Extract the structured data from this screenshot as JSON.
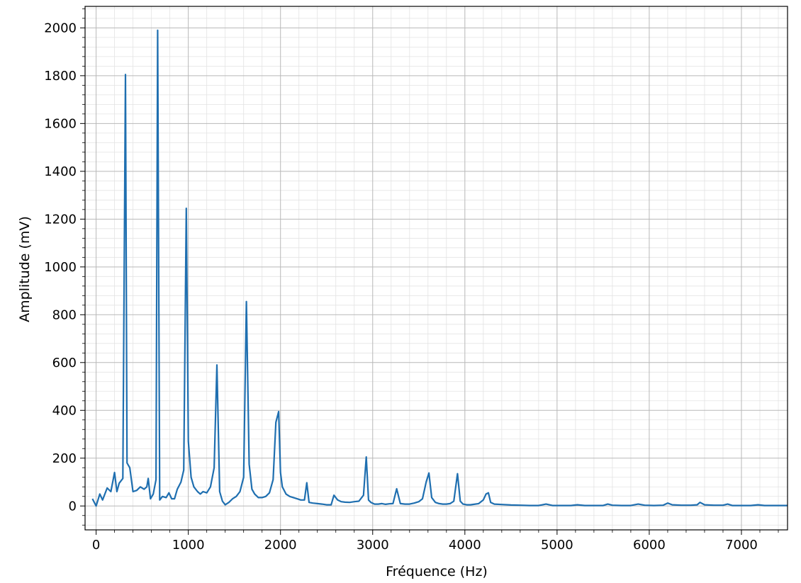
{
  "chart_data": {
    "type": "line",
    "title": "",
    "xlabel": "Fréquence (Hz)",
    "ylabel": "Amplitude (mV)",
    "xlim": [
      -120,
      7500
    ],
    "ylim": [
      -100,
      2090
    ],
    "xticks": [
      0,
      1000,
      2000,
      3000,
      4000,
      5000,
      6000,
      7000
    ],
    "yticks": [
      0,
      200,
      400,
      600,
      800,
      1000,
      1200,
      1400,
      1600,
      1800,
      2000
    ],
    "grid": true,
    "minor_grid": true,
    "legend": "none",
    "series": [
      {
        "color": "#1f6fb0",
        "x": [
          -40,
          0,
          40,
          70,
          120,
          160,
          200,
          225,
          250,
          290,
          318,
          335,
          365,
          400,
          440,
          480,
          520,
          550,
          565,
          590,
          620,
          650,
          667,
          690,
          720,
          760,
          790,
          820,
          850,
          880,
          920,
          950,
          978,
          1000,
          1030,
          1060,
          1100,
          1130,
          1160,
          1200,
          1240,
          1280,
          1310,
          1340,
          1370,
          1400,
          1440,
          1480,
          1520,
          1560,
          1600,
          1630,
          1660,
          1690,
          1720,
          1760,
          1800,
          1840,
          1880,
          1920,
          1950,
          1980,
          2000,
          2020,
          2060,
          2100,
          2140,
          2180,
          2220,
          2260,
          2285,
          2310,
          2350,
          2400,
          2450,
          2500,
          2550,
          2580,
          2620,
          2660,
          2700,
          2750,
          2800,
          2850,
          2900,
          2930,
          2955,
          2980,
          3020,
          3060,
          3100,
          3140,
          3180,
          3220,
          3260,
          3300,
          3350,
          3400,
          3450,
          3500,
          3540,
          3580,
          3610,
          3640,
          3680,
          3720,
          3760,
          3800,
          3840,
          3880,
          3920,
          3950,
          3980,
          4020,
          4060,
          4100,
          4150,
          4200,
          4230,
          4255,
          4280,
          4320,
          4400,
          4500,
          4600,
          4700,
          4800,
          4880,
          4950,
          5050,
          5150,
          5220,
          5300,
          5400,
          5500,
          5550,
          5600,
          5700,
          5800,
          5880,
          5950,
          6050,
          6150,
          6200,
          6250,
          6350,
          6450,
          6520,
          6550,
          6600,
          6700,
          6800,
          6850,
          6900,
          7000,
          7100,
          7180,
          7250,
          7350,
          7500
        ],
        "y": [
          30,
          0,
          50,
          25,
          75,
          60,
          140,
          60,
          95,
          115,
          1805,
          180,
          160,
          60,
          65,
          80,
          70,
          80,
          115,
          30,
          50,
          110,
          1990,
          25,
          40,
          35,
          55,
          30,
          30,
          70,
          100,
          150,
          1245,
          270,
          120,
          80,
          60,
          50,
          60,
          55,
          80,
          160,
          590,
          60,
          20,
          5,
          15,
          30,
          40,
          60,
          120,
          855,
          175,
          70,
          50,
          35,
          35,
          40,
          55,
          110,
          350,
          395,
          140,
          80,
          50,
          40,
          35,
          30,
          25,
          25,
          97,
          15,
          12,
          10,
          8,
          5,
          5,
          45,
          25,
          18,
          16,
          15,
          18,
          20,
          45,
          205,
          25,
          15,
          8,
          8,
          10,
          7,
          9,
          10,
          72,
          10,
          8,
          8,
          12,
          18,
          30,
          100,
          138,
          35,
          15,
          10,
          8,
          8,
          10,
          20,
          135,
          20,
          8,
          5,
          5,
          7,
          10,
          25,
          50,
          55,
          15,
          8,
          6,
          4,
          3,
          2,
          2,
          8,
          2,
          2,
          2,
          5,
          2,
          2,
          2,
          8,
          3,
          2,
          2,
          8,
          3,
          2,
          3,
          12,
          5,
          3,
          3,
          5,
          15,
          5,
          3,
          3,
          8,
          2,
          2,
          2,
          5,
          2,
          2,
          2
        ]
      }
    ]
  }
}
